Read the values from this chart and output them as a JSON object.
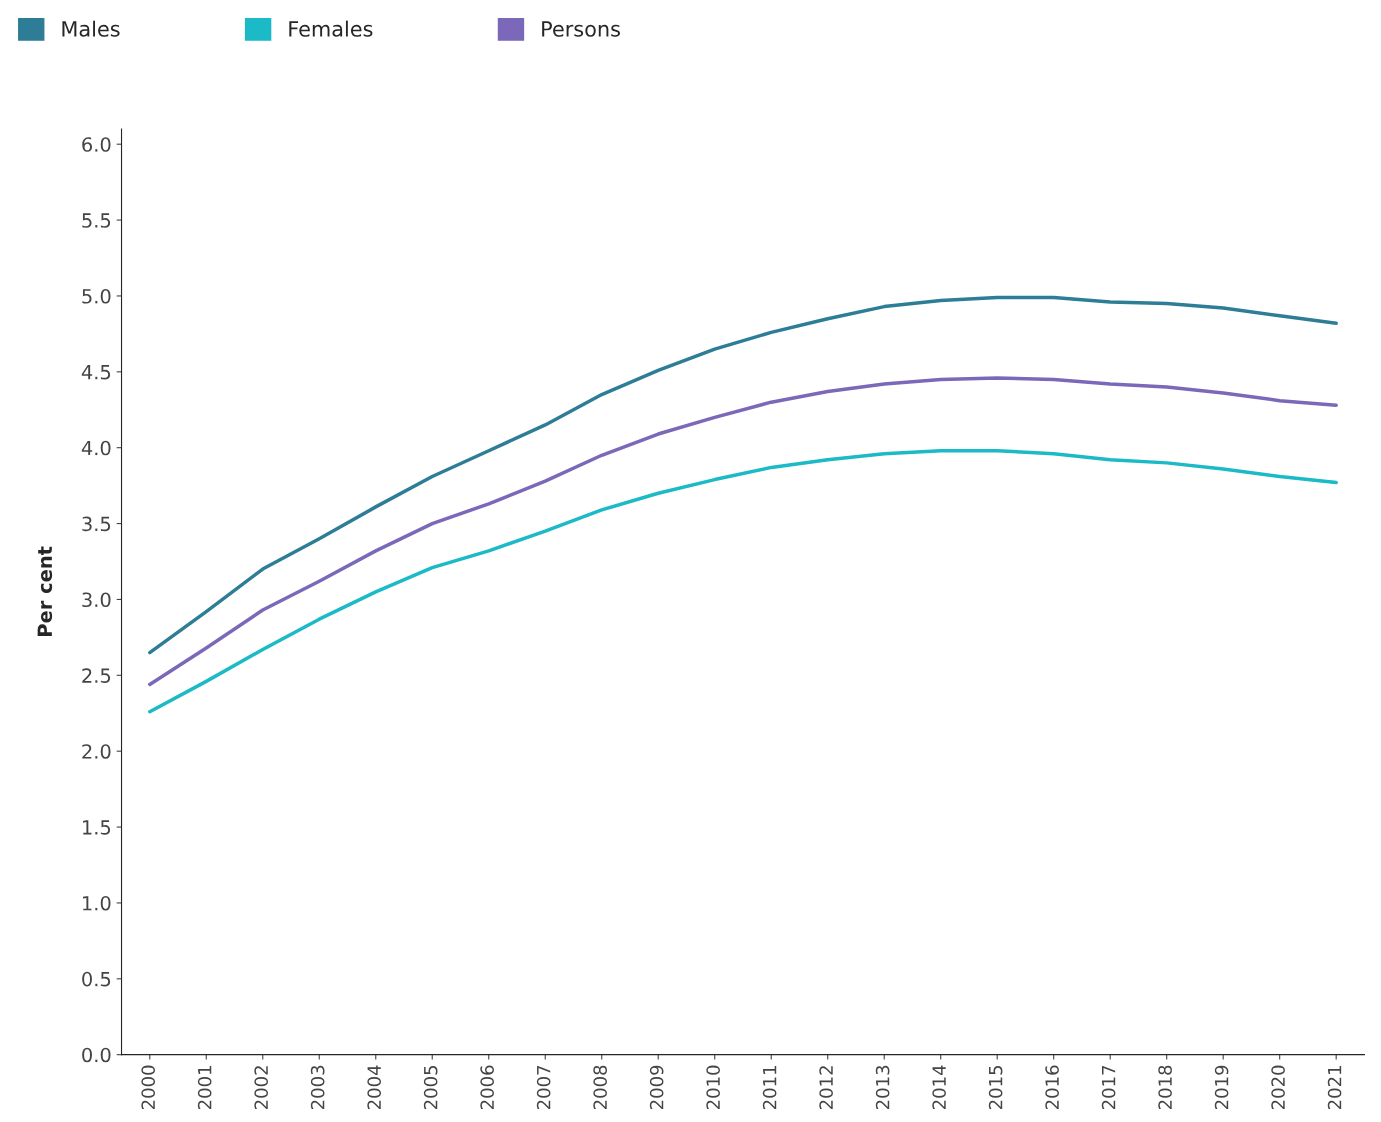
{
  "chart_data": {
    "type": "line",
    "ylabel": "Per cent",
    "categories": [
      "2000",
      "2001",
      "2002",
      "2003",
      "2004",
      "2005",
      "2006",
      "2007",
      "2008",
      "2009",
      "2010",
      "2011",
      "2012",
      "2013",
      "2014",
      "2015",
      "2016",
      "2017",
      "2018",
      "2019",
      "2020",
      "2021"
    ],
    "series": [
      {
        "name": "Males",
        "color": "#2e7d96",
        "values": [
          2.65,
          2.92,
          3.2,
          3.4,
          3.61,
          3.81,
          3.98,
          4.15,
          4.35,
          4.51,
          4.65,
          4.76,
          4.85,
          4.93,
          4.97,
          4.99,
          4.99,
          4.96,
          4.95,
          4.92,
          4.87,
          4.82
        ]
      },
      {
        "name": "Females",
        "color": "#1bbac6",
        "values": [
          2.26,
          2.46,
          2.67,
          2.87,
          3.05,
          3.21,
          3.32,
          3.45,
          3.59,
          3.7,
          3.79,
          3.87,
          3.92,
          3.96,
          3.98,
          3.98,
          3.96,
          3.92,
          3.9,
          3.86,
          3.81,
          3.77
        ]
      },
      {
        "name": "Persons",
        "color": "#7b68b8",
        "values": [
          2.44,
          2.68,
          2.93,
          3.12,
          3.32,
          3.5,
          3.63,
          3.78,
          3.95,
          4.09,
          4.2,
          4.3,
          4.37,
          4.42,
          4.45,
          4.46,
          4.45,
          4.42,
          4.4,
          4.36,
          4.31,
          4.28
        ]
      }
    ],
    "ylim": [
      0,
      6.1
    ],
    "yticks": [
      {
        "value": 0,
        "label": "0.0"
      },
      {
        "value": 0.5,
        "label": "0.5"
      },
      {
        "value": 1,
        "label": "1.0"
      },
      {
        "value": 1.5,
        "label": "1.5"
      },
      {
        "value": 2,
        "label": "2.0"
      },
      {
        "value": 2.5,
        "label": "2.5"
      },
      {
        "value": 3,
        "label": "3.0"
      },
      {
        "value": 3.5,
        "label": "3.5"
      },
      {
        "value": 4,
        "label": "4.0"
      },
      {
        "value": 4.5,
        "label": "4.5"
      },
      {
        "value": 5,
        "label": "5.0"
      },
      {
        "value": 5.5,
        "label": "5.5"
      },
      {
        "value": 6,
        "label": "6.0"
      }
    ],
    "grid": false,
    "legend": "top left",
    "marker": "none",
    "line_style": "solid"
  }
}
